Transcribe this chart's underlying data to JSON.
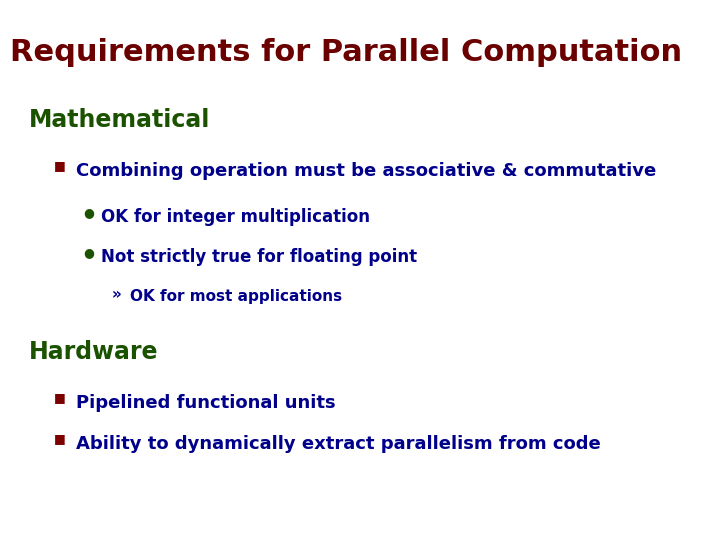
{
  "title": "Requirements for Parallel Computation",
  "title_color": "#6B0000",
  "title_fontsize": 22,
  "background_color": "#FFFFFF",
  "section_color": "#1A5200",
  "section_fontsize": 17,
  "bullet_color": "#00008B",
  "bullet_fontsize": 13,
  "sub_bullet_color": "#00008B",
  "sub_bullet_fontsize": 12,
  "sub_sub_bullet_color": "#00008B",
  "sub_sub_bullet_fontsize": 11,
  "square_bullet_color": "#7B0000",
  "circle_bullet_color": "#1A5200",
  "sections": [
    {
      "heading": "Mathematical",
      "items": [
        {
          "type": "square",
          "text": "Combining operation must be associative & commutative",
          "sub_items": [
            {
              "type": "circle",
              "text": "OK for integer multiplication"
            },
            {
              "type": "circle",
              "text": "Not strictly true for floating point",
              "sub_items": [
                {
                  "type": "arrow",
                  "text": "OK for most applications"
                }
              ]
            }
          ]
        }
      ]
    },
    {
      "heading": "Hardware",
      "items": [
        {
          "type": "square",
          "text": "Pipelined functional units"
        },
        {
          "type": "square",
          "text": "Ability to dynamically extract parallelism from code"
        }
      ]
    }
  ]
}
